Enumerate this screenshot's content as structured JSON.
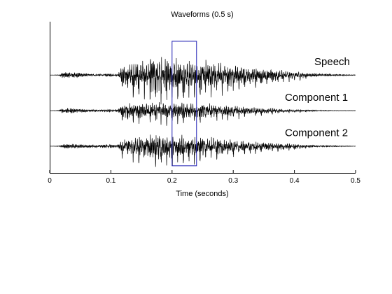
{
  "chart_data": {
    "type": "line",
    "title": "Waveforms (0.5 s)",
    "xlabel": "Time (seconds)",
    "ylabel": "",
    "xlim": [
      0,
      0.5
    ],
    "x_ticks": [
      0,
      0.1,
      0.2,
      0.3,
      0.4,
      0.5
    ],
    "x_tick_labels": [
      "0",
      "0.1",
      "0.2",
      "0.3",
      "0.4",
      "0.5"
    ],
    "grid": false,
    "legend": "none",
    "series": [
      {
        "name": "Speech",
        "offset": 2,
        "envelope": [
          [
            0.0,
            0.0
          ],
          [
            0.015,
            0.02
          ],
          [
            0.02,
            0.14
          ],
          [
            0.035,
            0.16
          ],
          [
            0.05,
            0.12
          ],
          [
            0.065,
            0.07
          ],
          [
            0.08,
            0.05
          ],
          [
            0.09,
            0.06
          ],
          [
            0.1,
            0.08
          ],
          [
            0.11,
            0.06
          ],
          [
            0.118,
            0.4
          ],
          [
            0.14,
            0.55
          ],
          [
            0.16,
            0.7
          ],
          [
            0.18,
            0.75
          ],
          [
            0.2,
            0.72
          ],
          [
            0.22,
            0.68
          ],
          [
            0.24,
            0.6
          ],
          [
            0.26,
            0.58
          ],
          [
            0.28,
            0.52
          ],
          [
            0.3,
            0.44
          ],
          [
            0.33,
            0.34
          ],
          [
            0.36,
            0.26
          ],
          [
            0.39,
            0.18
          ],
          [
            0.42,
            0.1
          ],
          [
            0.45,
            0.06
          ],
          [
            0.48,
            0.03
          ],
          [
            0.5,
            0.02
          ]
        ]
      },
      {
        "name": "Component 1",
        "offset": 1,
        "envelope": [
          [
            0.0,
            0.0
          ],
          [
            0.015,
            0.02
          ],
          [
            0.02,
            0.12
          ],
          [
            0.035,
            0.14
          ],
          [
            0.05,
            0.1
          ],
          [
            0.065,
            0.06
          ],
          [
            0.08,
            0.05
          ],
          [
            0.09,
            0.06
          ],
          [
            0.1,
            0.08
          ],
          [
            0.11,
            0.05
          ],
          [
            0.118,
            0.28
          ],
          [
            0.14,
            0.3
          ],
          [
            0.16,
            0.32
          ],
          [
            0.18,
            0.34
          ],
          [
            0.2,
            0.34
          ],
          [
            0.22,
            0.32
          ],
          [
            0.24,
            0.3
          ],
          [
            0.26,
            0.28
          ],
          [
            0.28,
            0.24
          ],
          [
            0.3,
            0.2
          ],
          [
            0.33,
            0.14
          ],
          [
            0.36,
            0.1
          ],
          [
            0.39,
            0.06
          ],
          [
            0.42,
            0.04
          ],
          [
            0.45,
            0.02
          ],
          [
            0.48,
            0.01
          ],
          [
            0.5,
            0.01
          ]
        ]
      },
      {
        "name": "Component 2",
        "offset": 0,
        "envelope": [
          [
            0.0,
            0.0
          ],
          [
            0.015,
            0.02
          ],
          [
            0.02,
            0.1
          ],
          [
            0.035,
            0.12
          ],
          [
            0.05,
            0.1
          ],
          [
            0.065,
            0.08
          ],
          [
            0.08,
            0.06
          ],
          [
            0.09,
            0.08
          ],
          [
            0.1,
            0.1
          ],
          [
            0.11,
            0.06
          ],
          [
            0.118,
            0.28
          ],
          [
            0.14,
            0.36
          ],
          [
            0.16,
            0.46
          ],
          [
            0.18,
            0.52
          ],
          [
            0.2,
            0.48
          ],
          [
            0.22,
            0.44
          ],
          [
            0.24,
            0.4
          ],
          [
            0.26,
            0.36
          ],
          [
            0.28,
            0.3
          ],
          [
            0.3,
            0.26
          ],
          [
            0.33,
            0.2
          ],
          [
            0.36,
            0.16
          ],
          [
            0.39,
            0.12
          ],
          [
            0.42,
            0.06
          ],
          [
            0.45,
            0.04
          ],
          [
            0.48,
            0.02
          ],
          [
            0.5,
            0.01
          ]
        ]
      }
    ],
    "highlight_window": {
      "x_start": 0.2,
      "x_end": 0.24,
      "color": "#1f1fb4"
    },
    "line_color": "#000000"
  }
}
